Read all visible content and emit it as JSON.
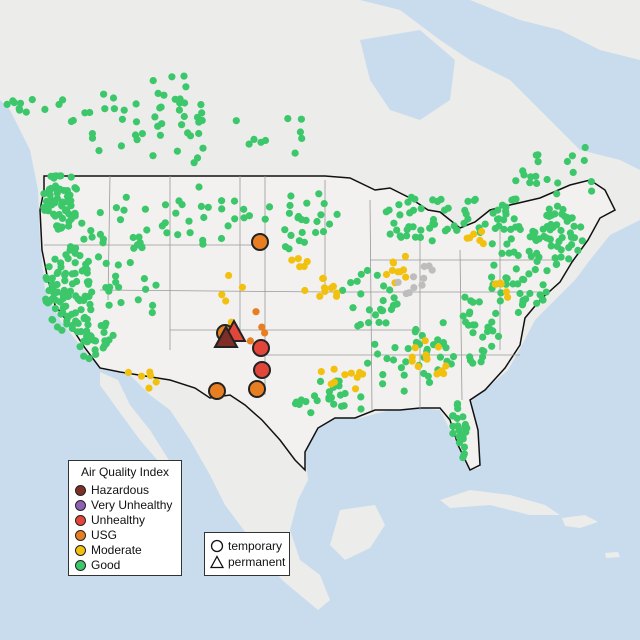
{
  "legend": {
    "title": "Air Quality Index",
    "categories": [
      {
        "label": "Hazardous",
        "color": "#7e2e27"
      },
      {
        "label": "Very Unhealthy",
        "color": "#8f5fb5"
      },
      {
        "label": "Unhealthy",
        "color": "#e2463a"
      },
      {
        "label": "USG",
        "color": "#e87e22"
      },
      {
        "label": "Moderate",
        "color": "#f2c10f"
      },
      {
        "label": "Good",
        "color": "#3cc76a"
      }
    ]
  },
  "monitor_types": [
    {
      "label": "temporary",
      "shape": "circle"
    },
    {
      "label": "permanent",
      "shape": "triangle"
    }
  ],
  "colors": {
    "water": "#c9dcee",
    "land": "#ececea",
    "us_land": "#f2f1ef",
    "good": "#3cc76a",
    "moderate": "#f2c10f",
    "usg": "#e87e22",
    "unhealthy": "#e2463a",
    "hazardous": "#7e2e27",
    "no_data": "#bdbdbd"
  }
}
